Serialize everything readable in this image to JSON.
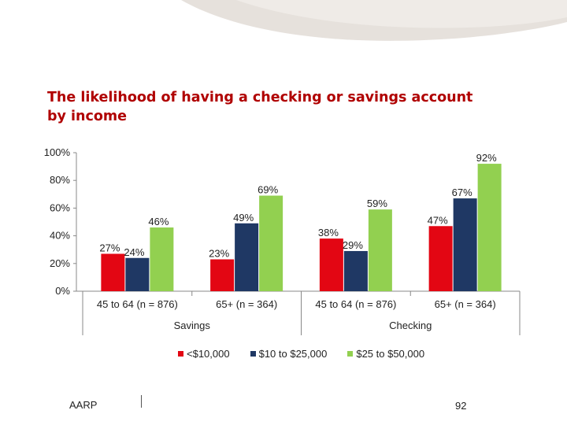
{
  "colors": {
    "accent": "#b00000",
    "swoosh": "#e6e1dc"
  },
  "title_lines": [
    "The likelihood of having a checking or savings account",
    "by income"
  ],
  "footer": {
    "left_label": "AARP",
    "page_number": "92"
  },
  "chart_data": {
    "type": "bar",
    "title": "The likelihood of having a checking or savings account by income",
    "ylim": [
      0,
      100
    ],
    "yticks": [
      "0%",
      "20%",
      "40%",
      "60%",
      "80%",
      "100%"
    ],
    "ytick_values": [
      0,
      20,
      40,
      60,
      80,
      100
    ],
    "grid": false,
    "legend_position": "bottom",
    "categories": [
      "45 to 64 (n = 876)",
      "65+ (n = 364)",
      "45 to 64 (n = 876)",
      "65+ (n = 364)"
    ],
    "groups": [
      {
        "label": "Savings",
        "categories": [
          0,
          1
        ]
      },
      {
        "label": "Checking",
        "categories": [
          2,
          3
        ]
      }
    ],
    "series": [
      {
        "name": "<$10,000",
        "color": "#e30613",
        "values": [
          27,
          23,
          38,
          47
        ],
        "labels": [
          "27%",
          "23%",
          "38%",
          "47%"
        ]
      },
      {
        "name": "$10 to $25,000",
        "color": "#1f3864",
        "values": [
          24,
          49,
          29,
          67
        ],
        "labels": [
          "24%",
          "49%",
          "29%",
          "67%"
        ]
      },
      {
        "name": "$25 to $50,000",
        "color": "#92d050",
        "values": [
          46,
          69,
          59,
          92
        ],
        "labels": [
          "46%",
          "69%",
          "59%",
          "92%"
        ]
      }
    ]
  }
}
